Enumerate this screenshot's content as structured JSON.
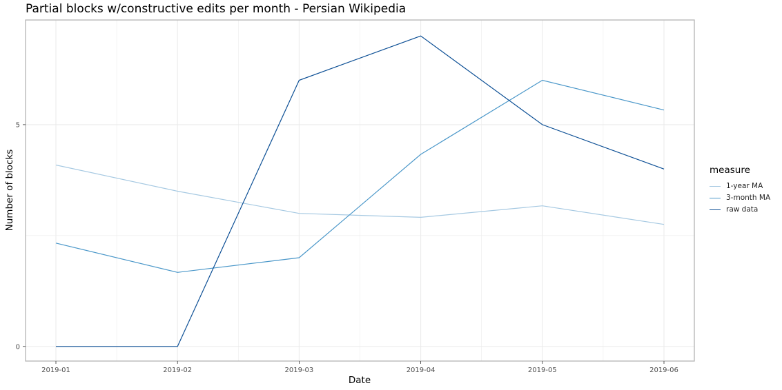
{
  "chart_data": {
    "type": "line",
    "title": "Partial blocks w/constructive edits per month - Persian Wikipedia",
    "xlabel": "Date",
    "ylabel": "Number of blocks",
    "categories": [
      "2019-01",
      "2019-02",
      "2019-03",
      "2019-04",
      "2019-05",
      "2019-06"
    ],
    "y_ticks": [
      0,
      5
    ],
    "ylim": [
      -0.33,
      7.36
    ],
    "grid": true,
    "legend": {
      "title": "measure",
      "position": "right"
    },
    "series": [
      {
        "name": "1-year MA",
        "color": "#a6c9e2",
        "values": [
          4.09,
          3.5,
          3.0,
          2.91,
          3.17,
          2.75
        ]
      },
      {
        "name": "3-month MA",
        "color": "#4a97c9",
        "values": [
          2.33,
          1.67,
          2.0,
          4.33,
          6.0,
          5.33
        ]
      },
      {
        "name": "raw data",
        "color": "#0c4f95",
        "values": [
          0,
          0,
          6,
          7,
          5,
          4
        ]
      }
    ]
  }
}
